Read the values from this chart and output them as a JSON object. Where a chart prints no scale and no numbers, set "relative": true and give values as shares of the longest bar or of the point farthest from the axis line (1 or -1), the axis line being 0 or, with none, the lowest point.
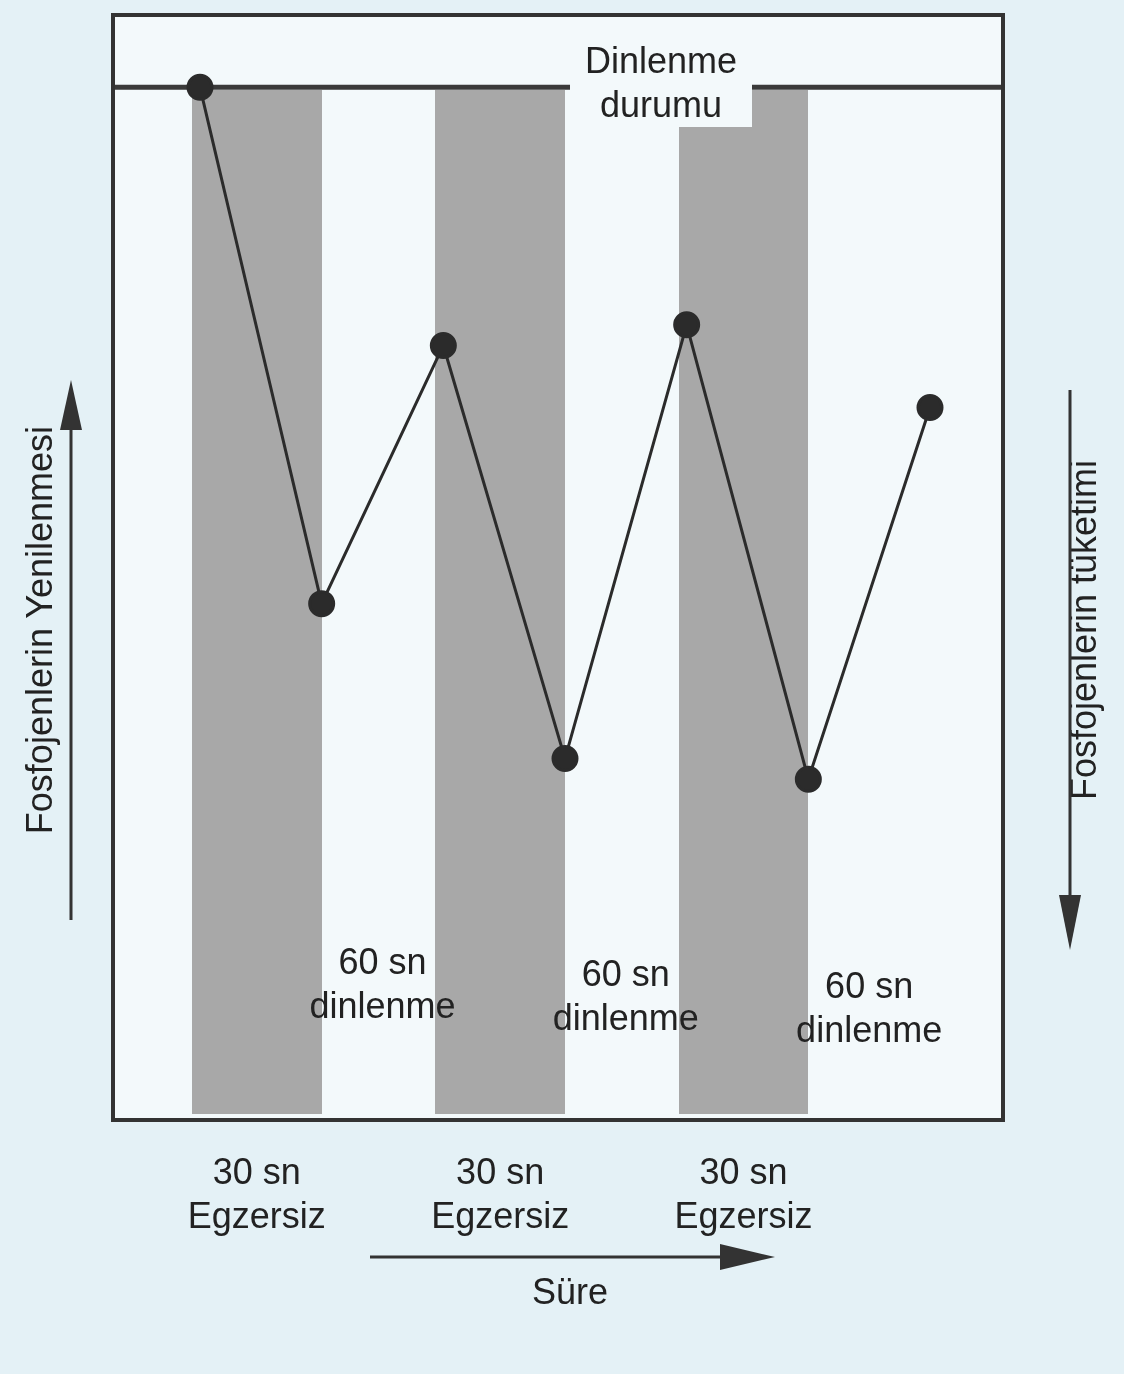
{
  "chart_data": {
    "type": "line",
    "relative": true,
    "categories": [
      null,
      null,
      null,
      null,
      null,
      null,
      null
    ],
    "values": [
      1,
      0.5,
      0.75,
      0.35,
      0.77,
      0.33,
      0.69
    ],
    "color": "#2b2b2b",
    "marker": "circle",
    "line_style": "solid",
    "legend": false,
    "ylabel": "Fosfojenlerin Yenilenmesi",
    "y2label": "Fosfojenlerin tüketimi",
    "xlabel": "Süre",
    "ref_lines": [
      {
        "axis": "y",
        "value": 1,
        "label": "Dinlenme durumu",
        "color": "#3a3a3a"
      }
    ],
    "annotations": [
      "30 sn Egzersiz",
      "30 sn Egzersiz",
      "30 sn Egzersiz",
      "60 sn dinlenme",
      "60 sn dinlenme",
      "60 sn dinlenme"
    ]
  }
}
